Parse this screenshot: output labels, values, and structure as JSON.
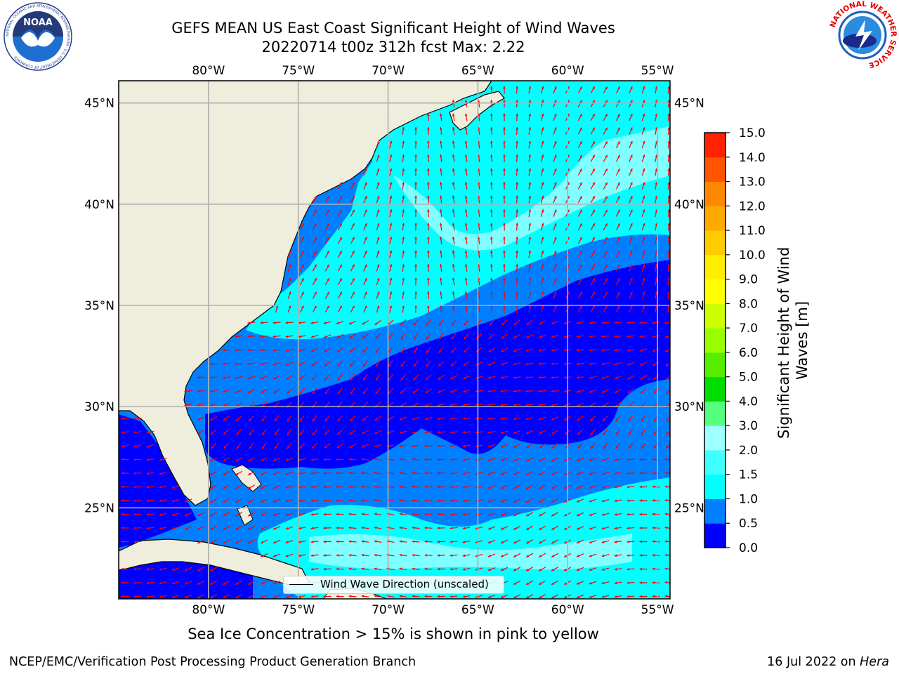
{
  "header": {
    "title_line1": "GEFS MEAN US East Coast Significant Height of Wind Waves",
    "title_line2": "20220714 t00z 312h fcst   Max: 2.22"
  },
  "logos": {
    "noaa": {
      "text": "NOAA",
      "ring_text": "NATIONAL OCEANIC AND ATMOSPHERIC ADMINISTRATION · U.S. DEPARTMENT OF COMMERCE"
    },
    "nws": {
      "ring_text": "NATIONAL WEATHER SERVICE"
    }
  },
  "map": {
    "lon_labels": [
      "80°W",
      "75°W",
      "70°W",
      "65°W",
      "60°W",
      "55°W"
    ],
    "lat_labels": [
      "45°N",
      "40°N",
      "35°N",
      "30°N",
      "25°N"
    ],
    "lons": [
      -80,
      -75,
      -70,
      -65,
      -60,
      -55
    ],
    "lats": [
      45,
      40,
      35,
      30,
      25
    ],
    "extent": {
      "lon": [
        -85,
        -54.3
      ],
      "lat": [
        20.5,
        46.1
      ]
    },
    "colors": {
      "land": "#efeddb",
      "coast": "#000000",
      "grid": "#b0b0b0",
      "arrow": "#ff0000"
    },
    "legend_label": "Wind Wave Direction (unscaled)"
  },
  "colorbar": {
    "label": "Significant Height of Wind Waves [m]",
    "ticks": [
      "0.0",
      "0.5",
      "1.0",
      "1.5",
      "2.0",
      "3.0",
      "4.0",
      "5.0",
      "6.0",
      "7.0",
      "8.0",
      "9.0",
      "10.0",
      "11.0",
      "12.0",
      "13.0",
      "14.0",
      "15.0"
    ],
    "colors": [
      "#0000ff",
      "#0080ff",
      "#00ffff",
      "#40ffff",
      "#a0ffff",
      "#55ff80",
      "#00dd00",
      "#55ee00",
      "#99ff00",
      "#ccff00",
      "#ffff00",
      "#ffee00",
      "#ffcc00",
      "#ffaa00",
      "#ff8800",
      "#ff5500",
      "#ff2200"
    ]
  },
  "footer": {
    "ice_note": "Sea Ice Concentration > 15% is shown in pink to yellow",
    "left": "NCEP/EMC/Verification Post Processing Product Generation Branch",
    "right_date": "16 Jul 2022 on ",
    "right_host": "Hera"
  }
}
